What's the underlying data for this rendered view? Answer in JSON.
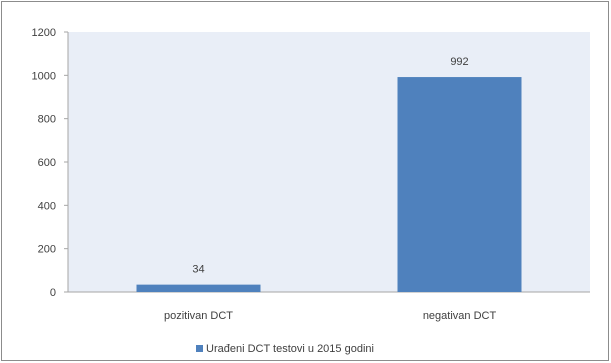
{
  "chart_data": {
    "type": "bar",
    "categories": [
      "pozitivan DCT",
      "negativan DCT"
    ],
    "series": [
      {
        "name": "Urađeni DCT testovi u 2015 godini",
        "values": [
          34,
          992
        ],
        "color": "#4f81bd"
      }
    ],
    "ylim": [
      0,
      1200
    ],
    "yticks": [
      0,
      200,
      400,
      600,
      800,
      1000,
      1200
    ],
    "data_labels": [
      "34",
      "992"
    ],
    "plot_background": "#e9eef7",
    "grid": false,
    "legend_position": "bottom"
  }
}
